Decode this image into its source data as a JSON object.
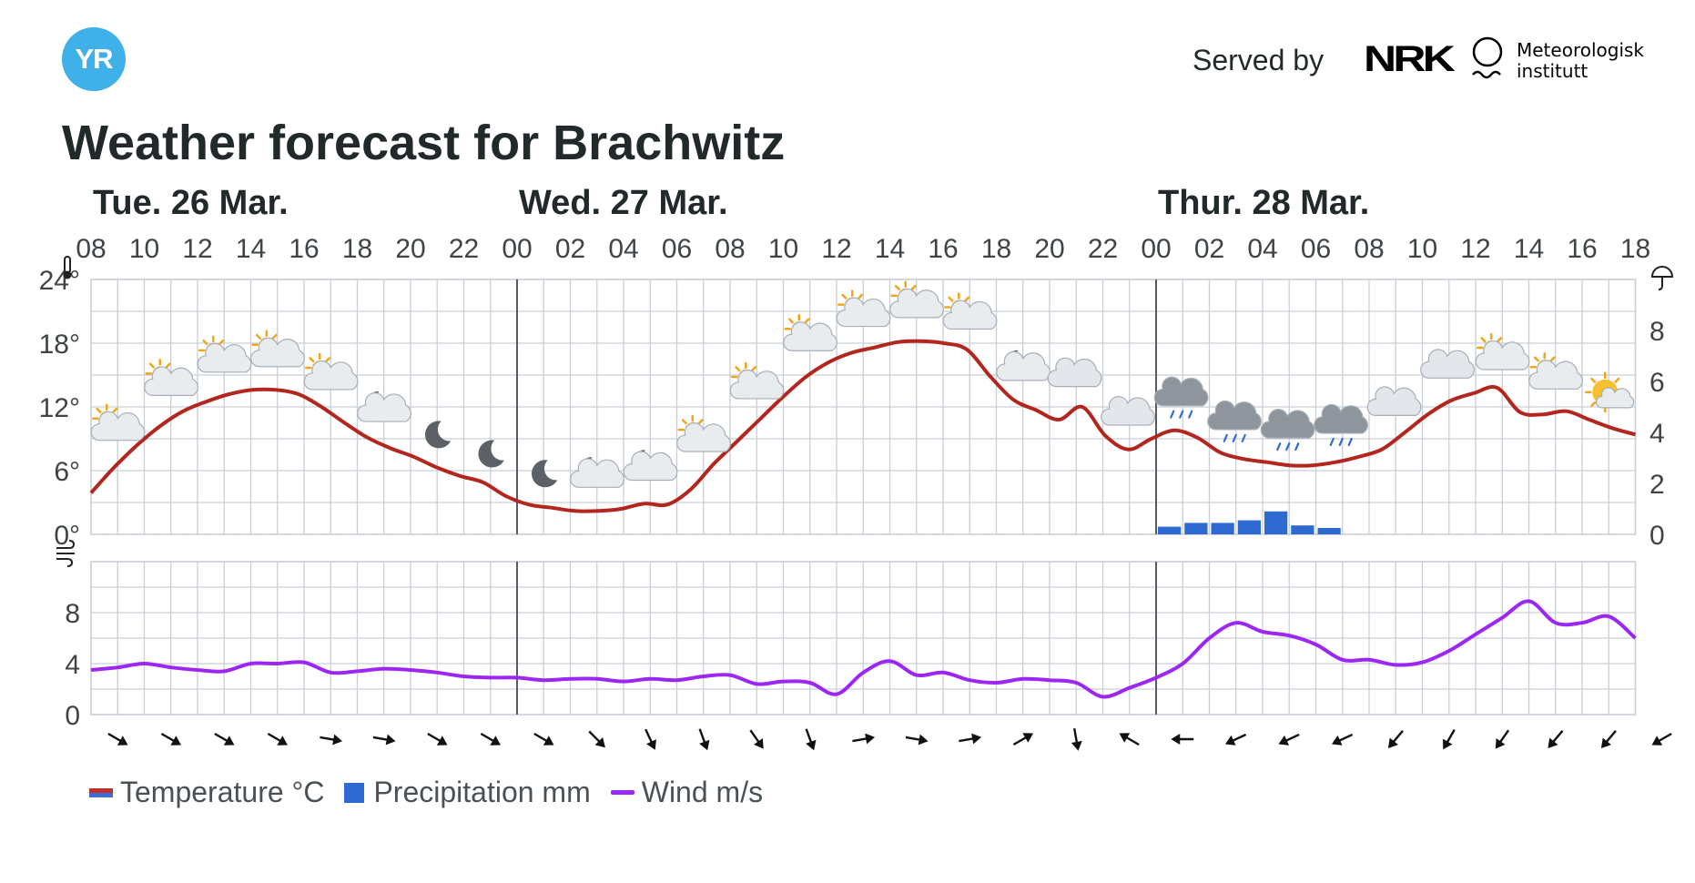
{
  "header": {
    "logo_text": "YR",
    "served_by": "Served by",
    "nrk_logo": "NRK",
    "met_line1": "Meteorologisk",
    "met_line2": "institutt",
    "title": "Weather forecast for Brachwitz"
  },
  "legend": {
    "temperature": "Temperature °C",
    "precipitation": "Precipitation mm",
    "wind": "Wind m/s"
  },
  "colors": {
    "temperature": "#b3261e",
    "precipitation": "#2f6ad3",
    "wind": "#9c27f5",
    "grid": "#c9cfd6",
    "text": "#3e4447",
    "arrow": "#111111"
  },
  "chart_data": {
    "type": "line",
    "days": [
      {
        "label": "Tue. 26 Mar.",
        "hour": 0
      },
      {
        "label": "Wed. 27 Mar.",
        "hour": 16
      },
      {
        "label": "Thur. 28 Mar.",
        "hour": 40
      }
    ],
    "hour_labels": [
      "08",
      "10",
      "12",
      "14",
      "16",
      "18",
      "20",
      "22",
      "00",
      "02",
      "04",
      "06",
      "08",
      "10",
      "12",
      "14",
      "16",
      "18",
      "20",
      "22",
      "00",
      "02",
      "04",
      "06",
      "08",
      "10",
      "12",
      "14",
      "16",
      "18"
    ],
    "day_separators_at_hour": [
      16,
      40
    ],
    "temperature": {
      "unit": "°C",
      "ylim": [
        0,
        24
      ],
      "ticks": [
        0,
        6,
        12,
        18,
        24
      ],
      "tick_labels": [
        "0°",
        "6°",
        "12°",
        "18°",
        "24°"
      ],
      "values": [
        3.9,
        6.3,
        8.4,
        10.2,
        11.6,
        12.5,
        13.2,
        13.6,
        13.6,
        13.2,
        12.0,
        10.5,
        9.1,
        8.1,
        7.3,
        6.3,
        5.5,
        4.9,
        3.6,
        2.8,
        2.5,
        2.2,
        2.2,
        2.4,
        2.9,
        2.8,
        4.2,
        6.6,
        8.7,
        10.8,
        12.9,
        14.8,
        16.2,
        17.1,
        17.6,
        18.1,
        18.2,
        18.0,
        17.4,
        14.9,
        12.7,
        11.7,
        10.8,
        12.0,
        9.3,
        8.0,
        9.0,
        9.8,
        9.1,
        7.7,
        7.1,
        6.8,
        6.5,
        6.5,
        6.8,
        7.3,
        8.0,
        9.6,
        11.3,
        12.6,
        13.3,
        13.8,
        11.5,
        11.3,
        11.6,
        10.8,
        10.0,
        9.4
      ]
    },
    "precipitation": {
      "unit": "mm",
      "ylim": [
        0,
        10
      ],
      "ticks": [
        0,
        2,
        4,
        6,
        8
      ],
      "bars": [
        {
          "hour": 41,
          "value": 0.3
        },
        {
          "hour": 42,
          "value": 0.45
        },
        {
          "hour": 43,
          "value": 0.45
        },
        {
          "hour": 44,
          "value": 0.55
        },
        {
          "hour": 45,
          "value": 0.9
        },
        {
          "hour": 46,
          "value": 0.35
        },
        {
          "hour": 47,
          "value": 0.25
        }
      ]
    },
    "wind": {
      "unit": "m/s",
      "ylim": [
        0,
        12
      ],
      "ticks": [
        0,
        4,
        8
      ],
      "values": [
        3.5,
        3.7,
        4.0,
        3.7,
        3.5,
        3.4,
        4.0,
        4.0,
        4.1,
        3.3,
        3.4,
        3.6,
        3.5,
        3.3,
        3.0,
        2.9,
        2.9,
        2.7,
        2.8,
        2.8,
        2.6,
        2.8,
        2.7,
        3.0,
        3.1,
        2.4,
        2.6,
        2.5,
        1.6,
        3.3,
        4.2,
        3.1,
        3.3,
        2.7,
        2.5,
        2.8,
        2.7,
        2.5,
        1.4,
        2.1,
        2.9,
        4.0,
        6.0,
        7.2,
        6.5,
        6.2,
        5.5,
        4.3,
        4.3,
        3.9,
        4.1,
        5.0,
        6.3,
        7.6,
        8.9,
        7.2,
        7.2,
        7.7,
        6.0
      ]
    },
    "wind_directions_deg": [
      120,
      120,
      120,
      120,
      100,
      100,
      120,
      120,
      120,
      135,
      155,
      160,
      145,
      160,
      80,
      100,
      80,
      60,
      170,
      300,
      270,
      245,
      245,
      245,
      220,
      210,
      215,
      220,
      220,
      240
    ],
    "weather_icons": [
      {
        "hour": 1,
        "icon": "partly-cloudy-day-icon"
      },
      {
        "hour": 3,
        "icon": "partly-cloudy-day-icon"
      },
      {
        "hour": 5,
        "icon": "partly-cloudy-day-icon"
      },
      {
        "hour": 7,
        "icon": "partly-cloudy-day-icon"
      },
      {
        "hour": 9,
        "icon": "partly-cloudy-day-icon"
      },
      {
        "hour": 11,
        "icon": "partly-cloudy-night-icon"
      },
      {
        "hour": 13,
        "icon": "clear-night-icon"
      },
      {
        "hour": 15,
        "icon": "clear-night-icon"
      },
      {
        "hour": 17,
        "icon": "clear-night-icon"
      },
      {
        "hour": 19,
        "icon": "partly-cloudy-night-icon"
      },
      {
        "hour": 21,
        "icon": "partly-cloudy-night-icon"
      },
      {
        "hour": 23,
        "icon": "partly-cloudy-day-icon"
      },
      {
        "hour": 25,
        "icon": "partly-cloudy-day-icon"
      },
      {
        "hour": 27,
        "icon": "partly-cloudy-day-icon"
      },
      {
        "hour": 29,
        "icon": "partly-cloudy-day-icon"
      },
      {
        "hour": 31,
        "icon": "partly-cloudy-day-icon"
      },
      {
        "hour": 33,
        "icon": "partly-cloudy-day-icon"
      },
      {
        "hour": 35,
        "icon": "partly-cloudy-night-icon"
      },
      {
        "hour": 37,
        "icon": "cloudy-icon"
      },
      {
        "hour": 39,
        "icon": "cloudy-icon"
      },
      {
        "hour": 41,
        "icon": "rain-icon"
      },
      {
        "hour": 43,
        "icon": "rain-icon"
      },
      {
        "hour": 45,
        "icon": "rain-icon"
      },
      {
        "hour": 47,
        "icon": "rain-icon"
      },
      {
        "hour": 49,
        "icon": "cloudy-icon"
      },
      {
        "hour": 51,
        "icon": "cloudy-icon"
      },
      {
        "hour": 53,
        "icon": "partly-cloudy-day-icon"
      },
      {
        "hour": 55,
        "icon": "partly-cloudy-day-icon"
      },
      {
        "hour": 57,
        "icon": "fair-day-icon"
      }
    ],
    "axis_icons": [
      "thermometer-icon",
      "umbrella-icon",
      "wind-icon"
    ]
  }
}
